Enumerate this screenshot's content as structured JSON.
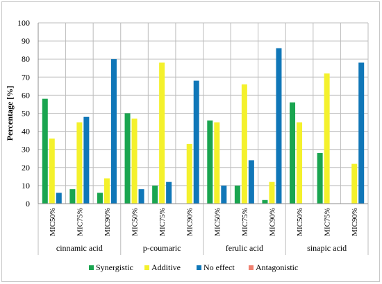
{
  "chart_data": {
    "type": "bar",
    "title": "",
    "ylabel": "Percentage [%]",
    "ylim": [
      0,
      100
    ],
    "yticks": [
      0,
      10,
      20,
      30,
      40,
      50,
      60,
      70,
      80,
      90,
      100
    ],
    "grid": true,
    "legend_position": "bottom",
    "groups": [
      "cinnamic acid",
      "p-coumaric",
      "ferulic acid",
      "sinapic acid"
    ],
    "categories": [
      "MIC50%",
      "MIC75%",
      "MIC90%",
      "MIC50%",
      "MIC75%",
      "MIC90%",
      "MIC50%",
      "MIC75%",
      "MIC90%",
      "MIC50%",
      "MIC75%",
      "MIC90%"
    ],
    "series": [
      {
        "name": "Synergistic",
        "color": "#1aa550",
        "values": [
          58,
          8,
          6,
          50,
          10,
          0,
          46,
          10,
          2,
          56,
          28,
          0
        ]
      },
      {
        "name": "Additive",
        "color": "#f4f12c",
        "values": [
          36,
          45,
          14,
          47,
          78,
          33,
          45,
          66,
          12,
          45,
          72,
          22
        ]
      },
      {
        "name": "No effect",
        "color": "#1077b8",
        "values": [
          6,
          48,
          80,
          8,
          12,
          68,
          10,
          24,
          86,
          0,
          0,
          78
        ]
      },
      {
        "name": "Antagonistic",
        "color": "#f08070",
        "values": [
          0,
          0,
          0,
          0,
          0,
          0,
          0,
          0,
          0,
          0,
          0,
          0
        ]
      }
    ]
  }
}
